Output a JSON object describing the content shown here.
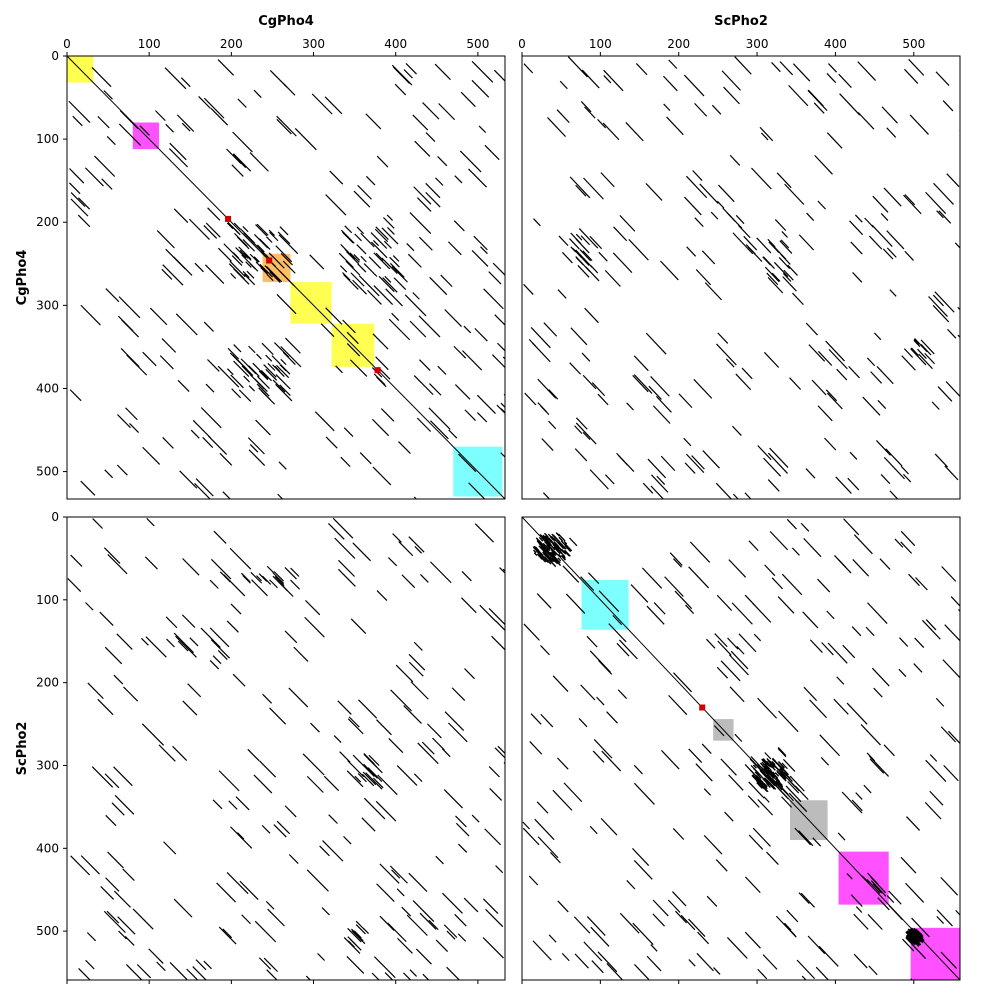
{
  "chart_data": {
    "type": "dotplot",
    "x_labels": [
      "CgPho4",
      "ScPho2"
    ],
    "y_labels": [
      "CgPho4",
      "ScPho2"
    ],
    "x_ticks": [
      [
        "0",
        "100",
        "200",
        "300",
        "400",
        "500"
      ],
      [
        "0",
        "100",
        "200",
        "300",
        "400",
        "500"
      ]
    ],
    "y_ticks": [
      [
        "0",
        "100",
        "200",
        "300",
        "400",
        "500"
      ],
      [
        "0",
        "100",
        "200",
        "300",
        "400",
        "500"
      ]
    ],
    "sequence_lengths": {
      "CgPho4": 533,
      "ScPho2": 559
    },
    "panels": [
      {
        "row": 0,
        "col": 0,
        "x_seq": "CgPho4",
        "y_seq": "CgPho4",
        "xlim": [
          0,
          533
        ],
        "ylim": [
          533,
          0
        ],
        "diagonal": true,
        "regions": [
          {
            "start": 0,
            "end": 32,
            "color": "#ffff33"
          },
          {
            "start": 80,
            "end": 112,
            "color": "#ff33ff"
          },
          {
            "start": 238,
            "end": 272,
            "color": "#ffb347"
          },
          {
            "start": 272,
            "end": 322,
            "color": "#ffff33"
          },
          {
            "start": 322,
            "end": 374,
            "color": "#ffff33"
          },
          {
            "start": 470,
            "end": 530,
            "color": "#66ffff"
          }
        ],
        "markers": [
          {
            "x": 196,
            "y": 196,
            "color": "#cc0000"
          },
          {
            "x": 246,
            "y": 246,
            "color": "#cc0000"
          },
          {
            "x": 378,
            "y": 378,
            "color": "#cc0000"
          }
        ],
        "dense_clusters": [
          {
            "x": 230,
            "y": 235,
            "w": 70,
            "h": 70,
            "n": 45
          },
          {
            "x": 365,
            "y": 230,
            "w": 70,
            "h": 80,
            "n": 40
          },
          {
            "x": 230,
            "y": 375,
            "w": 70,
            "h": 60,
            "n": 40
          }
        ]
      },
      {
        "row": 0,
        "col": 1,
        "x_seq": "ScPho2",
        "y_seq": "CgPho4",
        "xlim": [
          0,
          559
        ],
        "ylim": [
          533,
          0
        ],
        "diagonal": false,
        "regions": [],
        "markers": [],
        "dense_clusters": [
          {
            "x": 75,
            "y": 230,
            "w": 30,
            "h": 50,
            "n": 15
          },
          {
            "x": 310,
            "y": 240,
            "w": 60,
            "h": 60,
            "n": 20
          },
          {
            "x": 500,
            "y": 352,
            "w": 25,
            "h": 25,
            "n": 10
          }
        ]
      },
      {
        "row": 1,
        "col": 0,
        "x_seq": "CgPho4",
        "y_seq": "ScPho2",
        "xlim": [
          0,
          533
        ],
        "ylim": [
          559,
          0
        ],
        "diagonal": false,
        "regions": [],
        "markers": [],
        "dense_clusters": [
          {
            "x": 240,
            "y": 68,
            "w": 70,
            "h": 20,
            "n": 15
          },
          {
            "x": 355,
            "y": 300,
            "w": 30,
            "h": 30,
            "n": 12
          },
          {
            "x": 350,
            "y": 500,
            "w": 25,
            "h": 25,
            "n": 10
          }
        ]
      },
      {
        "row": 1,
        "col": 1,
        "x_seq": "ScPho2",
        "y_seq": "ScPho2",
        "xlim": [
          0,
          559
        ],
        "ylim": [
          559,
          0
        ],
        "diagonal": true,
        "regions": [
          {
            "start": 76,
            "end": 136,
            "color": "#66ffff"
          },
          {
            "start": 244,
            "end": 270,
            "color": "#b0b0b0"
          },
          {
            "start": 342,
            "end": 390,
            "color": "#b0b0b0"
          },
          {
            "start": 404,
            "end": 468,
            "color": "#ff33ff"
          },
          {
            "start": 496,
            "end": 559,
            "color": "#ff33ff"
          }
        ],
        "markers": [
          {
            "x": 230,
            "y": 230,
            "color": "#cc0000"
          }
        ],
        "blobs": [
          {
            "x": 35,
            "y": 35,
            "r": 22
          },
          {
            "x": 313,
            "y": 308,
            "r": 22
          },
          {
            "x": 498,
            "y": 503,
            "r": 9
          }
        ],
        "dense_clusters": [
          {
            "x": 313,
            "y": 308,
            "w": 60,
            "h": 60,
            "n": 25
          },
          {
            "x": 440,
            "y": 450,
            "w": 60,
            "h": 60,
            "n": 15
          }
        ]
      }
    ],
    "grid": false
  }
}
